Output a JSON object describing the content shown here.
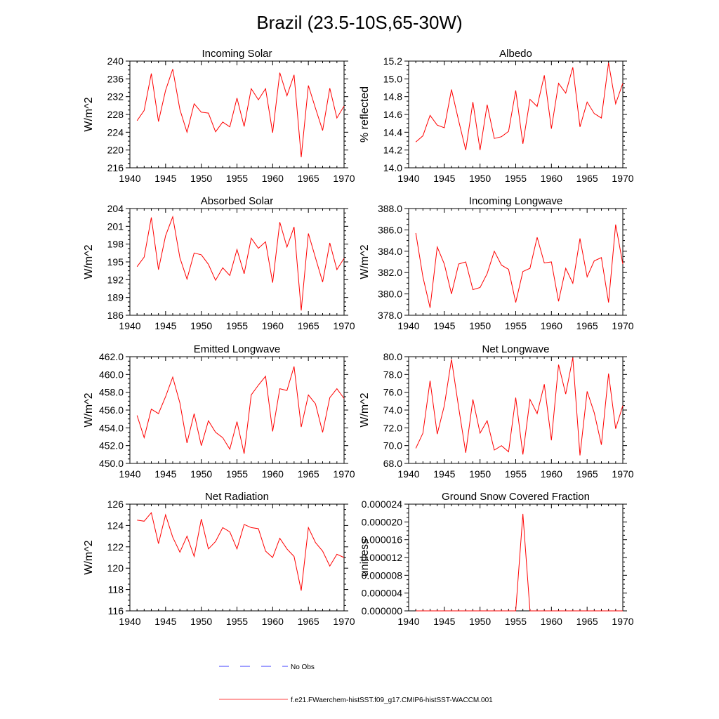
{
  "figure": {
    "title": "Brazil (23.5-10S,65-30W)"
  },
  "chart_data": [
    {
      "type": "line",
      "title": "Incoming Solar",
      "ylabel": "W/m^2",
      "xlim": [
        1940,
        1970
      ],
      "ylim": [
        216,
        240
      ],
      "xticks": [
        "1940",
        "1945",
        "1950",
        "1955",
        "1960",
        "1965",
        "1970"
      ],
      "yticks": [
        "216",
        "220",
        "224",
        "228",
        "232",
        "236",
        "240"
      ],
      "series": [
        {
          "color": "#ff0000",
          "x": [
            1941,
            1942,
            1943,
            1944,
            1945,
            1946,
            1947,
            1948,
            1949,
            1950,
            1951,
            1952,
            1953,
            1954,
            1955,
            1956,
            1957,
            1958,
            1959,
            1960,
            1961,
            1962,
            1963,
            1964,
            1965,
            1966,
            1967,
            1968,
            1969,
            1970
          ],
          "values": [
            226.6,
            228.9,
            237.2,
            226.4,
            233.4,
            238.2,
            229.1,
            224.0,
            230.4,
            228.5,
            228.3,
            224.1,
            226.3,
            225.2,
            231.7,
            225.3,
            233.8,
            231.3,
            233.8,
            223.9,
            237.4,
            232.2,
            236.9,
            218.4,
            234.5,
            229.4,
            224.4,
            233.9,
            227.2,
            229.9
          ]
        }
      ]
    },
    {
      "type": "line",
      "title": "Albedo",
      "ylabel": "% reflected",
      "xlim": [
        1940,
        1970
      ],
      "ylim": [
        14.0,
        15.2
      ],
      "xticks": [
        "1940",
        "1945",
        "1950",
        "1955",
        "1960",
        "1965",
        "1970"
      ],
      "yticks": [
        "14.0",
        "14.2",
        "14.4",
        "14.6",
        "14.8",
        "15.0",
        "15.2"
      ],
      "series": [
        {
          "color": "#ff0000",
          "x": [
            1941,
            1942,
            1943,
            1944,
            1945,
            1946,
            1947,
            1948,
            1949,
            1950,
            1951,
            1952,
            1953,
            1954,
            1955,
            1956,
            1957,
            1958,
            1959,
            1960,
            1961,
            1962,
            1963,
            1964,
            1965,
            1966,
            1967,
            1968,
            1969,
            1970
          ],
          "values": [
            14.29,
            14.36,
            14.59,
            14.48,
            14.45,
            14.88,
            14.53,
            14.2,
            14.74,
            14.2,
            14.71,
            14.33,
            14.35,
            14.41,
            14.87,
            14.27,
            14.77,
            14.69,
            15.04,
            14.44,
            14.95,
            14.84,
            15.13,
            14.46,
            14.74,
            14.61,
            14.56,
            15.18,
            14.72,
            14.95
          ]
        }
      ]
    },
    {
      "type": "line",
      "title": "Absorbed Solar",
      "ylabel": "W/m^2",
      "xlim": [
        1940,
        1970
      ],
      "ylim": [
        186,
        204
      ],
      "xticks": [
        "1940",
        "1945",
        "1950",
        "1955",
        "1960",
        "1965",
        "1970"
      ],
      "yticks": [
        "186",
        "189",
        "192",
        "195",
        "198",
        "201",
        "204"
      ],
      "series": [
        {
          "color": "#ff0000",
          "x": [
            1941,
            1942,
            1943,
            1944,
            1945,
            1946,
            1947,
            1948,
            1949,
            1950,
            1951,
            1952,
            1953,
            1954,
            1955,
            1956,
            1957,
            1958,
            1959,
            1960,
            1961,
            1962,
            1963,
            1964,
            1965,
            1966,
            1967,
            1968,
            1969,
            1970
          ],
          "values": [
            194.2,
            195.8,
            202.5,
            193.7,
            199.4,
            202.6,
            195.7,
            192.1,
            196.5,
            196.2,
            194.6,
            191.9,
            194.0,
            192.7,
            197.1,
            193.0,
            199.0,
            197.3,
            198.4,
            191.5,
            201.7,
            197.5,
            200.9,
            186.8,
            199.8,
            195.7,
            191.6,
            198.2,
            193.7,
            195.6
          ]
        }
      ]
    },
    {
      "type": "line",
      "title": "Incoming Longwave",
      "ylabel": "W/m^2",
      "xlim": [
        1940,
        1970
      ],
      "ylim": [
        378.0,
        388.0
      ],
      "xticks": [
        "1940",
        "1945",
        "1950",
        "1955",
        "1960",
        "1965",
        "1970"
      ],
      "yticks": [
        "378.0",
        "380.0",
        "382.0",
        "384.0",
        "386.0",
        "388.0"
      ],
      "series": [
        {
          "color": "#ff0000",
          "x": [
            1941,
            1942,
            1943,
            1944,
            1945,
            1946,
            1947,
            1948,
            1949,
            1950,
            1951,
            1952,
            1953,
            1954,
            1955,
            1956,
            1957,
            1958,
            1959,
            1960,
            1961,
            1962,
            1963,
            1964,
            1965,
            1966,
            1967,
            1968,
            1969,
            1970
          ],
          "values": [
            385.7,
            381.6,
            378.7,
            384.4,
            382.8,
            380.0,
            382.8,
            383.0,
            380.4,
            380.6,
            381.9,
            384.0,
            382.7,
            382.3,
            379.2,
            382.1,
            382.4,
            385.3,
            382.9,
            383.0,
            379.3,
            382.4,
            381.0,
            385.2,
            381.6,
            383.1,
            383.4,
            379.2,
            386.5,
            382.8
          ]
        }
      ]
    },
    {
      "type": "line",
      "title": "Emitted Longwave",
      "ylabel": "W/m^2",
      "xlim": [
        1940,
        1970
      ],
      "ylim": [
        450.0,
        462.0
      ],
      "xticks": [
        "1940",
        "1945",
        "1950",
        "1955",
        "1960",
        "1965",
        "1970"
      ],
      "yticks": [
        "450.0",
        "452.0",
        "454.0",
        "456.0",
        "458.0",
        "460.0",
        "462.0"
      ],
      "series": [
        {
          "color": "#ff0000",
          "x": [
            1941,
            1942,
            1943,
            1944,
            1945,
            1946,
            1947,
            1948,
            1949,
            1950,
            1951,
            1952,
            1953,
            1954,
            1955,
            1956,
            1957,
            1958,
            1959,
            1960,
            1961,
            1962,
            1963,
            1964,
            1965,
            1966,
            1967,
            1968,
            1969,
            1970
          ],
          "values": [
            455.4,
            452.9,
            456.1,
            455.6,
            457.5,
            459.7,
            456.8,
            452.3,
            455.6,
            452.0,
            454.8,
            453.5,
            452.9,
            451.6,
            454.7,
            451.1,
            457.7,
            458.8,
            459.8,
            453.6,
            458.4,
            458.2,
            460.9,
            454.1,
            457.7,
            456.7,
            453.5,
            457.4,
            458.4,
            457.3
          ]
        }
      ]
    },
    {
      "type": "line",
      "title": "Net Longwave",
      "ylabel": "W/m^2",
      "xlim": [
        1940,
        1970
      ],
      "ylim": [
        68.0,
        80.0
      ],
      "xticks": [
        "1940",
        "1945",
        "1950",
        "1955",
        "1960",
        "1965",
        "1970"
      ],
      "yticks": [
        "68.0",
        "70.0",
        "72.0",
        "74.0",
        "76.0",
        "78.0",
        "80.0"
      ],
      "series": [
        {
          "color": "#ff0000",
          "x": [
            1941,
            1942,
            1943,
            1944,
            1945,
            1946,
            1947,
            1948,
            1949,
            1950,
            1951,
            1952,
            1953,
            1954,
            1955,
            1956,
            1957,
            1958,
            1959,
            1960,
            1961,
            1962,
            1963,
            1964,
            1965,
            1966,
            1967,
            1968,
            1969,
            1970
          ],
          "values": [
            69.7,
            71.4,
            77.3,
            71.3,
            74.5,
            79.7,
            74.3,
            69.2,
            75.2,
            71.4,
            72.8,
            69.5,
            70.0,
            69.3,
            75.4,
            69.0,
            75.2,
            73.6,
            76.9,
            70.6,
            79.1,
            75.8,
            79.9,
            68.9,
            76.1,
            73.7,
            70.1,
            78.1,
            71.9,
            74.5
          ]
        }
      ]
    },
    {
      "type": "line",
      "title": "Net Radiation",
      "ylabel": "W/m^2",
      "xlim": [
        1940,
        1970
      ],
      "ylim": [
        116,
        126
      ],
      "xticks": [
        "1940",
        "1945",
        "1950",
        "1955",
        "1960",
        "1965",
        "1970"
      ],
      "yticks": [
        "116",
        "118",
        "120",
        "122",
        "124",
        "126"
      ],
      "series": [
        {
          "color": "#ff0000",
          "x": [
            1941,
            1942,
            1943,
            1944,
            1945,
            1946,
            1947,
            1948,
            1949,
            1950,
            1951,
            1952,
            1953,
            1954,
            1955,
            1956,
            1957,
            1958,
            1959,
            1960,
            1961,
            1962,
            1963,
            1964,
            1965,
            1966,
            1967,
            1968,
            1969,
            1970
          ],
          "values": [
            124.5,
            124.4,
            125.2,
            122.3,
            125.0,
            122.9,
            121.5,
            123.0,
            121.1,
            124.6,
            121.8,
            122.5,
            123.8,
            123.4,
            121.8,
            124.1,
            123.8,
            123.7,
            121.6,
            121.0,
            122.8,
            121.8,
            121.1,
            117.9,
            123.8,
            122.4,
            121.6,
            120.2,
            121.3,
            121.0
          ]
        }
      ]
    },
    {
      "type": "line",
      "title": "Ground Snow Covered Fraction",
      "ylabel": "unitless",
      "xlim": [
        1940,
        1970
      ],
      "ylim": [
        0.0,
        2.4e-05
      ],
      "xticks": [
        "1940",
        "1945",
        "1950",
        "1955",
        "1960",
        "1965",
        "1970"
      ],
      "yticks": [
        "0.000000",
        "0.000004",
        "0.000008",
        "0.000012",
        "0.000016",
        "0.000020",
        "0.000024"
      ],
      "series": [
        {
          "color": "#ff0000",
          "x": [
            1941,
            1942,
            1943,
            1944,
            1945,
            1946,
            1947,
            1948,
            1949,
            1950,
            1951,
            1952,
            1953,
            1954,
            1955,
            1956,
            1957,
            1958,
            1959,
            1960,
            1961,
            1962,
            1963,
            1964,
            1965,
            1966,
            1967,
            1968,
            1969,
            1970
          ],
          "values": [
            0,
            0,
            0,
            0,
            0,
            0,
            0,
            0,
            0,
            0,
            0,
            0,
            0,
            0,
            0,
            2.18e-05,
            0,
            0,
            0,
            0,
            0,
            0,
            0,
            0,
            0,
            0,
            0,
            0,
            0,
            0
          ]
        }
      ]
    }
  ],
  "legend": {
    "items": [
      {
        "label": "No Obs",
        "color": "#0000ff",
        "style": "dashed"
      },
      {
        "label": "f.e21.FWaerchem-histSST.f09_g17.CMIP6-histSST-WACCM.001",
        "color": "#ff0000",
        "style": "solid"
      }
    ]
  }
}
